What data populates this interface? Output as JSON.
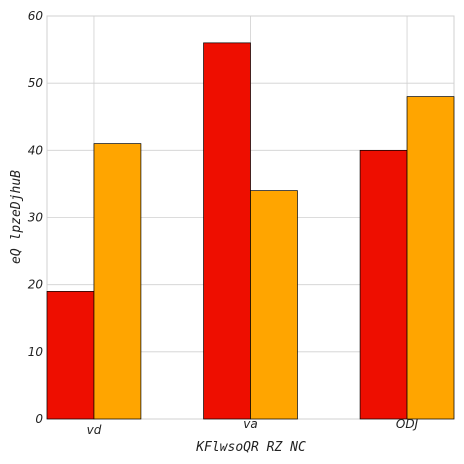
{
  "chart_data": {
    "type": "bar",
    "title": "",
    "xlabel": "KFlwsoQR RZ NC",
    "ylabel": "eQ lpzeDjhuB",
    "categories": [
      "vd",
      "va",
      "ODJ"
    ],
    "series": [
      {
        "values": [
          19,
          56,
          40
        ],
        "color": "#ee0e00"
      },
      {
        "values": [
          41,
          34,
          48
        ],
        "color": "#ffa500"
      }
    ],
    "ylim": [
      0,
      60
    ],
    "yticks": [
      "0",
      "10",
      "20",
      "30",
      "40",
      "50",
      "60"
    ],
    "grid": true,
    "legend": "none"
  },
  "colors": {
    "background": "#ffffff",
    "grid": "#d0d0d0",
    "axes_edge": "#d0d0d0",
    "bar_edge": "#000000"
  }
}
